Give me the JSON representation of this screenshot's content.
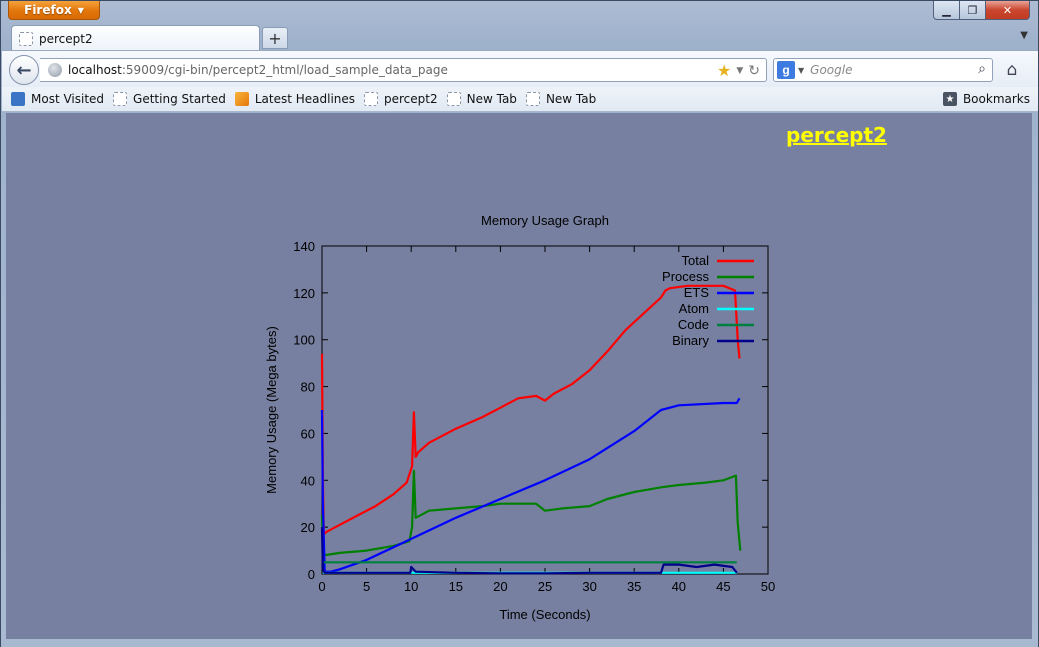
{
  "window": {
    "firefox_button": "Firefox",
    "min_icon": "minimize-icon",
    "max_icon": "maximize-icon",
    "close_icon": "close-icon"
  },
  "tabs": [
    {
      "label": "percept2"
    }
  ],
  "navbar": {
    "url_host": "localhost",
    "url_rest": ":59009/cgi-bin/percept2_html/load_sample_data_page",
    "search_placeholder": "Google"
  },
  "bookmarks": [
    {
      "label": "Most Visited",
      "icon": "most-visited-icon"
    },
    {
      "label": "Getting Started",
      "icon": "blank-page-icon"
    },
    {
      "label": "Latest Headlines",
      "icon": "rss-icon"
    },
    {
      "label": "percept2",
      "icon": "blank-page-icon"
    },
    {
      "label": "New Tab",
      "icon": "blank-page-icon"
    },
    {
      "label": "New Tab",
      "icon": "blank-page-icon"
    }
  ],
  "bookmarks_menu": "Bookmarks",
  "page": {
    "title_link": "percept2",
    "title_color": "#ffff00",
    "background": "#7780a0"
  },
  "chart_data": {
    "type": "line",
    "title": "Memory Usage Graph",
    "xlabel": "Time (Seconds)",
    "ylabel": "Memory Usage (Mega bytes)",
    "xlim": [
      0,
      50
    ],
    "ylim": [
      0,
      140
    ],
    "xticks": [
      0,
      5,
      10,
      15,
      20,
      25,
      30,
      35,
      40,
      45,
      50
    ],
    "yticks": [
      0,
      20,
      40,
      60,
      80,
      100,
      120,
      140
    ],
    "grid": false,
    "legend_position": "top-right",
    "series": [
      {
        "name": "Total",
        "color": "#ff0000",
        "x": [
          0,
          0.1,
          0.2,
          0.5,
          2,
          4,
          6,
          8,
          9.5,
          10.1,
          10.3,
          10.5,
          10.8,
          12,
          15,
          18,
          20,
          22,
          24,
          25,
          26,
          28,
          30,
          32,
          34,
          36,
          38,
          38.5,
          39,
          41,
          43,
          45,
          46.3,
          46.6,
          46.8
        ],
        "y": [
          94,
          40,
          17,
          18,
          21,
          25,
          29,
          34,
          39,
          46,
          69,
          50,
          52,
          56,
          62,
          67,
          71,
          75,
          76,
          74,
          77,
          81,
          87,
          95,
          104,
          111,
          118,
          121,
          122,
          123,
          123,
          123,
          121,
          100,
          92
        ]
      },
      {
        "name": "Process",
        "color": "#008000",
        "x": [
          0,
          0.1,
          0.2,
          2,
          5,
          8,
          9.8,
          10.1,
          10.3,
          10.5,
          12,
          15,
          18,
          20,
          24,
          25,
          27,
          30,
          32,
          35,
          38,
          40,
          43,
          45,
          46.4,
          46.6,
          46.9
        ],
        "y": [
          25,
          10,
          8,
          9,
          10,
          12,
          14,
          20,
          44,
          24,
          27,
          28,
          29,
          30,
          30,
          27,
          28,
          29,
          32,
          35,
          37,
          38,
          39,
          40,
          42,
          22,
          10
        ]
      },
      {
        "name": "ETS",
        "color": "#0000ff",
        "x": [
          0,
          0.1,
          0.3,
          1,
          2,
          5,
          10,
          15,
          20,
          25,
          30,
          35,
          38,
          40,
          45,
          46.5,
          46.8
        ],
        "y": [
          70,
          30,
          1,
          1,
          2,
          6,
          15,
          24,
          32,
          40,
          49,
          61,
          70,
          72,
          73,
          73,
          75
        ]
      },
      {
        "name": "Atom",
        "color": "#00ffff",
        "x": [
          0.1,
          46.5
        ],
        "y": [
          0.5,
          0.5
        ]
      },
      {
        "name": "Code",
        "color": "#008040",
        "x": [
          0,
          0.2,
          46.5
        ],
        "y": [
          5,
          5,
          5
        ]
      },
      {
        "name": "Binary",
        "color": "#00008b",
        "x": [
          0,
          0.1,
          0.3,
          5,
          9.9,
          10,
          10.5,
          15,
          20,
          25,
          30,
          35,
          38,
          38.3,
          40,
          42,
          44,
          46,
          46.5
        ],
        "y": [
          20,
          2,
          0.5,
          0.5,
          0.5,
          3,
          1,
          0.5,
          0.3,
          0.3,
          0.5,
          0.5,
          0.5,
          4,
          4,
          3,
          4,
          3,
          0.5
        ]
      }
    ]
  }
}
